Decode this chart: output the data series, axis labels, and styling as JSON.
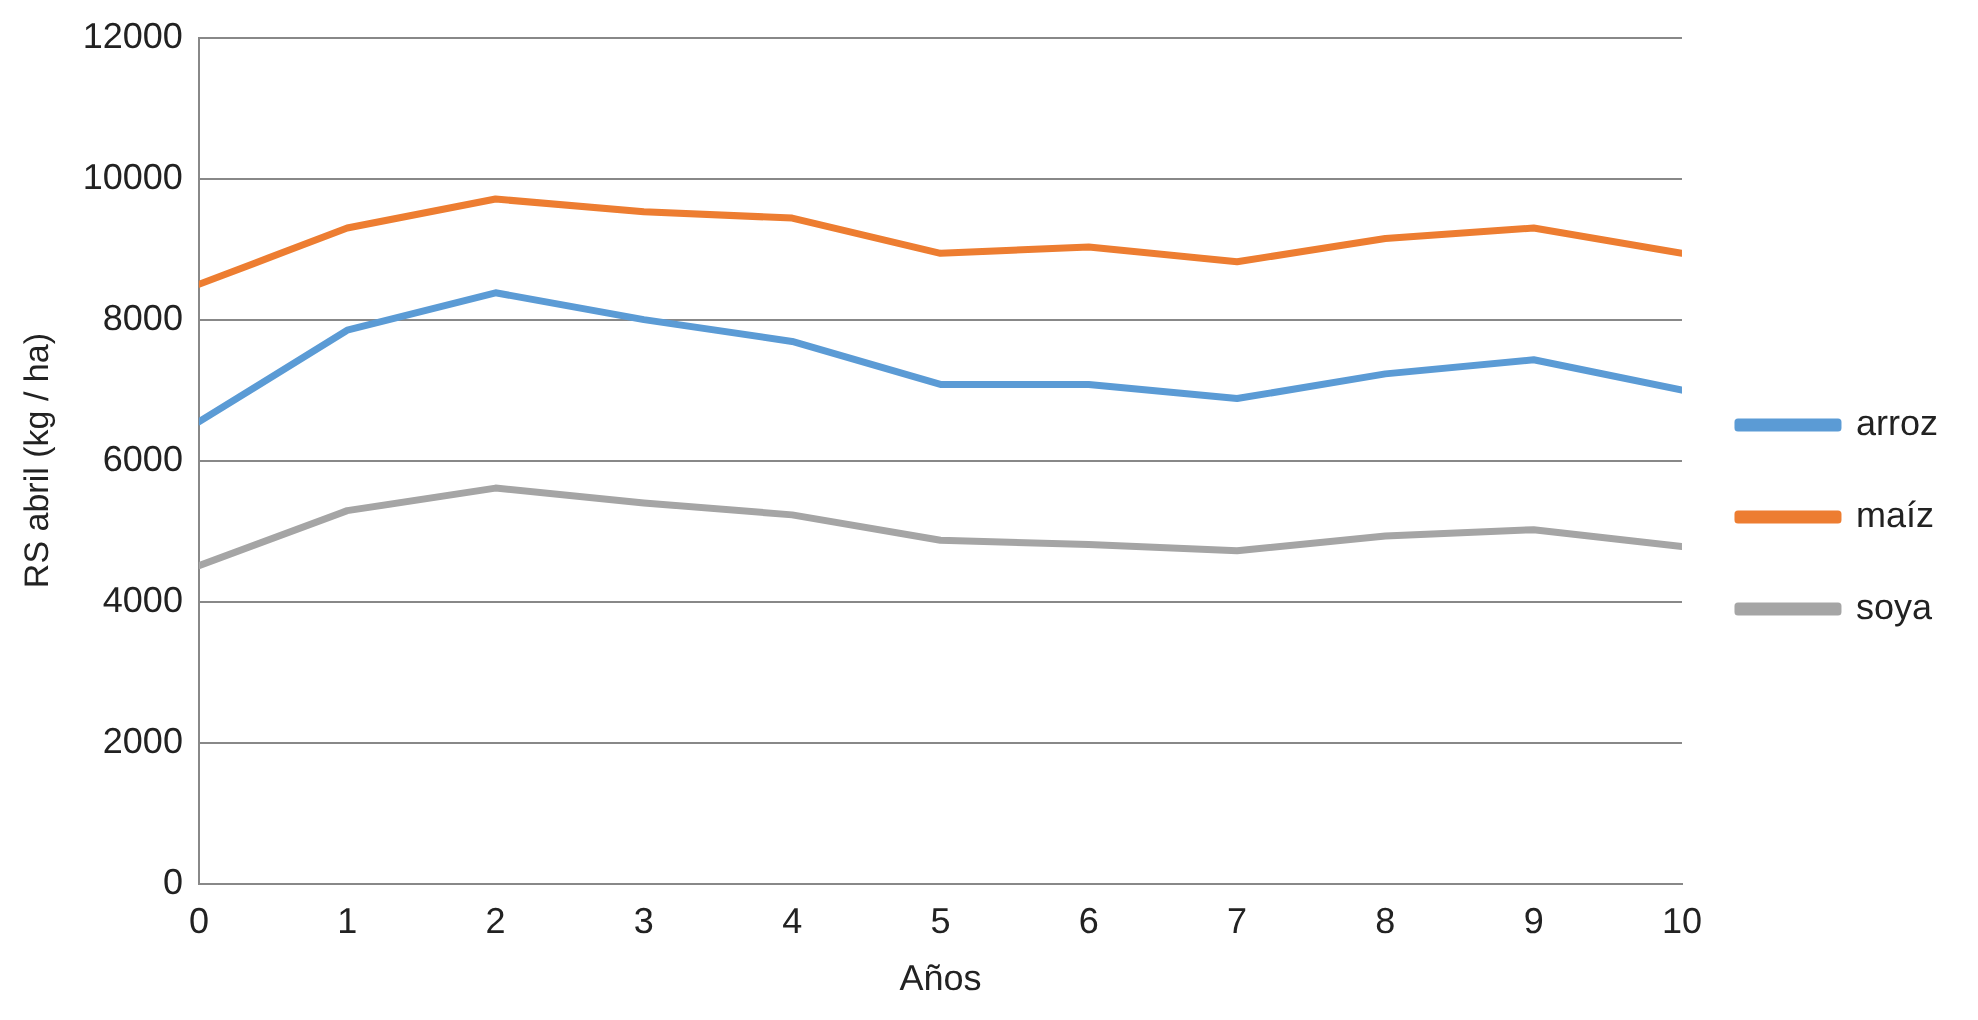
{
  "chart_data": {
    "type": "line",
    "xlabel": "Años",
    "ylabel": "RS abril (kg / ha)",
    "x": [
      0,
      1,
      2,
      3,
      4,
      5,
      6,
      7,
      8,
      9,
      10
    ],
    "xlim": [
      0,
      10
    ],
    "xticks": [
      0,
      1,
      2,
      3,
      4,
      5,
      6,
      7,
      8,
      9,
      10
    ],
    "ylim": [
      0,
      12000
    ],
    "yticks": [
      0,
      2000,
      4000,
      6000,
      8000,
      10000,
      12000
    ],
    "grid": "y",
    "legend": "right",
    "marker": "none",
    "line_style": "solid",
    "series": [
      {
        "name": "arroz",
        "color": "#5b9bd5",
        "values": [
          6550,
          7850,
          8380,
          8000,
          7690,
          7080,
          7080,
          6880,
          7230,
          7430,
          7000
        ]
      },
      {
        "name": "maíz",
        "color": "#ed7d31",
        "values": [
          8500,
          9300,
          9710,
          9530,
          9440,
          8940,
          9030,
          8820,
          9150,
          9300,
          8940
        ]
      },
      {
        "name": "soya",
        "color": "#a5a5a5",
        "values": [
          4510,
          5290,
          5610,
          5400,
          5230,
          4870,
          4810,
          4720,
          4930,
          5020,
          4780
        ]
      }
    ]
  }
}
